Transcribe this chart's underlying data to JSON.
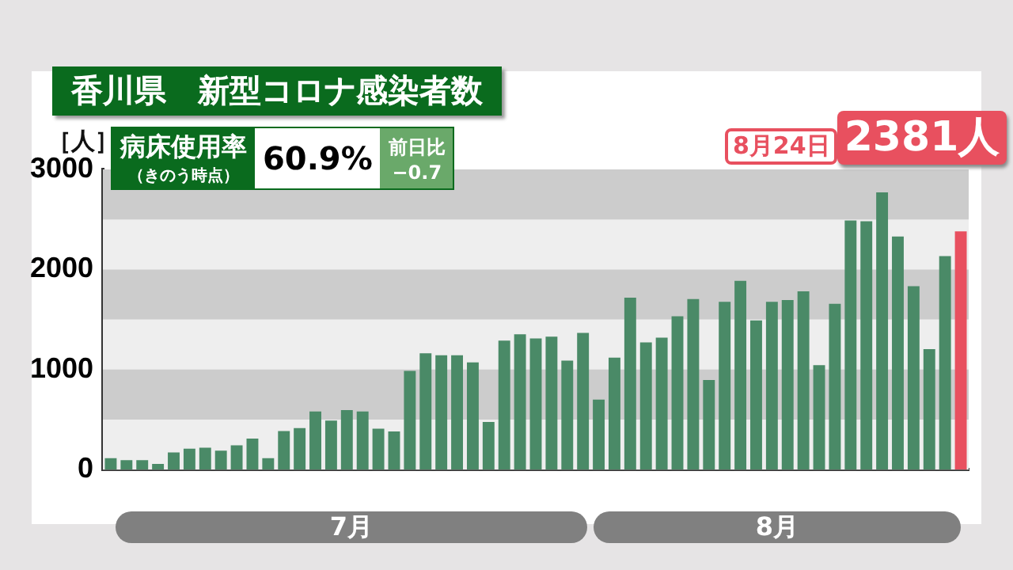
{
  "chart_data": {
    "type": "bar",
    "title": "香川県　新型コロナ感染者数",
    "ylabel": "［人］",
    "categories": [
      null,
      null,
      null,
      null,
      null,
      null,
      null,
      null,
      null,
      null,
      null,
      null,
      null,
      null,
      null,
      null,
      null,
      null,
      null,
      null,
      null,
      null,
      null,
      null,
      null,
      null,
      null,
      null,
      null,
      null,
      null,
      null,
      null,
      null,
      null,
      null,
      null,
      null,
      null,
      null,
      null,
      null,
      null,
      null,
      null,
      null,
      null,
      null,
      null,
      null,
      null,
      null,
      null,
      null,
      null
    ],
    "values": [
      114,
      95,
      95,
      57,
      171,
      210,
      219,
      190,
      243,
      310,
      114,
      386,
      414,
      581,
      490,
      595,
      581,
      410,
      381,
      986,
      1162,
      1143,
      1143,
      1071,
      476,
      1290,
      1352,
      1310,
      1329,
      1090,
      1367,
      700,
      1119,
      1719,
      1271,
      1319,
      1533,
      1705,
      895,
      1676,
      1886,
      1490,
      1676,
      1695,
      1781,
      1043,
      1657,
      2490,
      2481,
      2771,
      2329,
      1833,
      1205,
      2133,
      2381
    ],
    "colors": [
      "#4a8a67",
      "#4a8a67",
      "#4a8a67",
      "#4a8a67",
      "#4a8a67",
      "#4a8a67",
      "#4a8a67",
      "#4a8a67",
      "#4a8a67",
      "#4a8a67",
      "#4a8a67",
      "#4a8a67",
      "#4a8a67",
      "#4a8a67",
      "#4a8a67",
      "#4a8a67",
      "#4a8a67",
      "#4a8a67",
      "#4a8a67",
      "#4a8a67",
      "#4a8a67",
      "#4a8a67",
      "#4a8a67",
      "#4a8a67",
      "#4a8a67",
      "#4a8a67",
      "#4a8a67",
      "#4a8a67",
      "#4a8a67",
      "#4a8a67",
      "#4a8a67",
      "#4a8a67",
      "#4a8a67",
      "#4a8a67",
      "#4a8a67",
      "#4a8a67",
      "#4a8a67",
      "#4a8a67",
      "#4a8a67",
      "#4a8a67",
      "#4a8a67",
      "#4a8a67",
      "#4a8a67",
      "#4a8a67",
      "#4a8a67",
      "#4a8a67",
      "#4a8a67",
      "#4a8a67",
      "#4a8a67",
      "#4a8a67",
      "#4a8a67",
      "#4a8a67",
      "#4a8a67",
      "#4a8a67",
      "#e8505f"
    ],
    "ylim": [
      0,
      3000
    ],
    "yticks": [
      0,
      1000,
      2000,
      3000
    ],
    "grid": false,
    "legend": false,
    "bands": [
      {
        "axis": "y",
        "from": 500,
        "to": 1000,
        "color": "#cccccc"
      },
      {
        "axis": "y",
        "from": 1500,
        "to": 2000,
        "color": "#cccccc"
      },
      {
        "axis": "y",
        "from": 2500,
        "to": 3000,
        "color": "#cccccc"
      }
    ],
    "annotations": [
      "病床使用率",
      "（きのう時点）",
      "60.9%",
      "前日比",
      "−0.7",
      "8月24日",
      "2381人",
      "7月",
      "8月"
    ]
  }
}
